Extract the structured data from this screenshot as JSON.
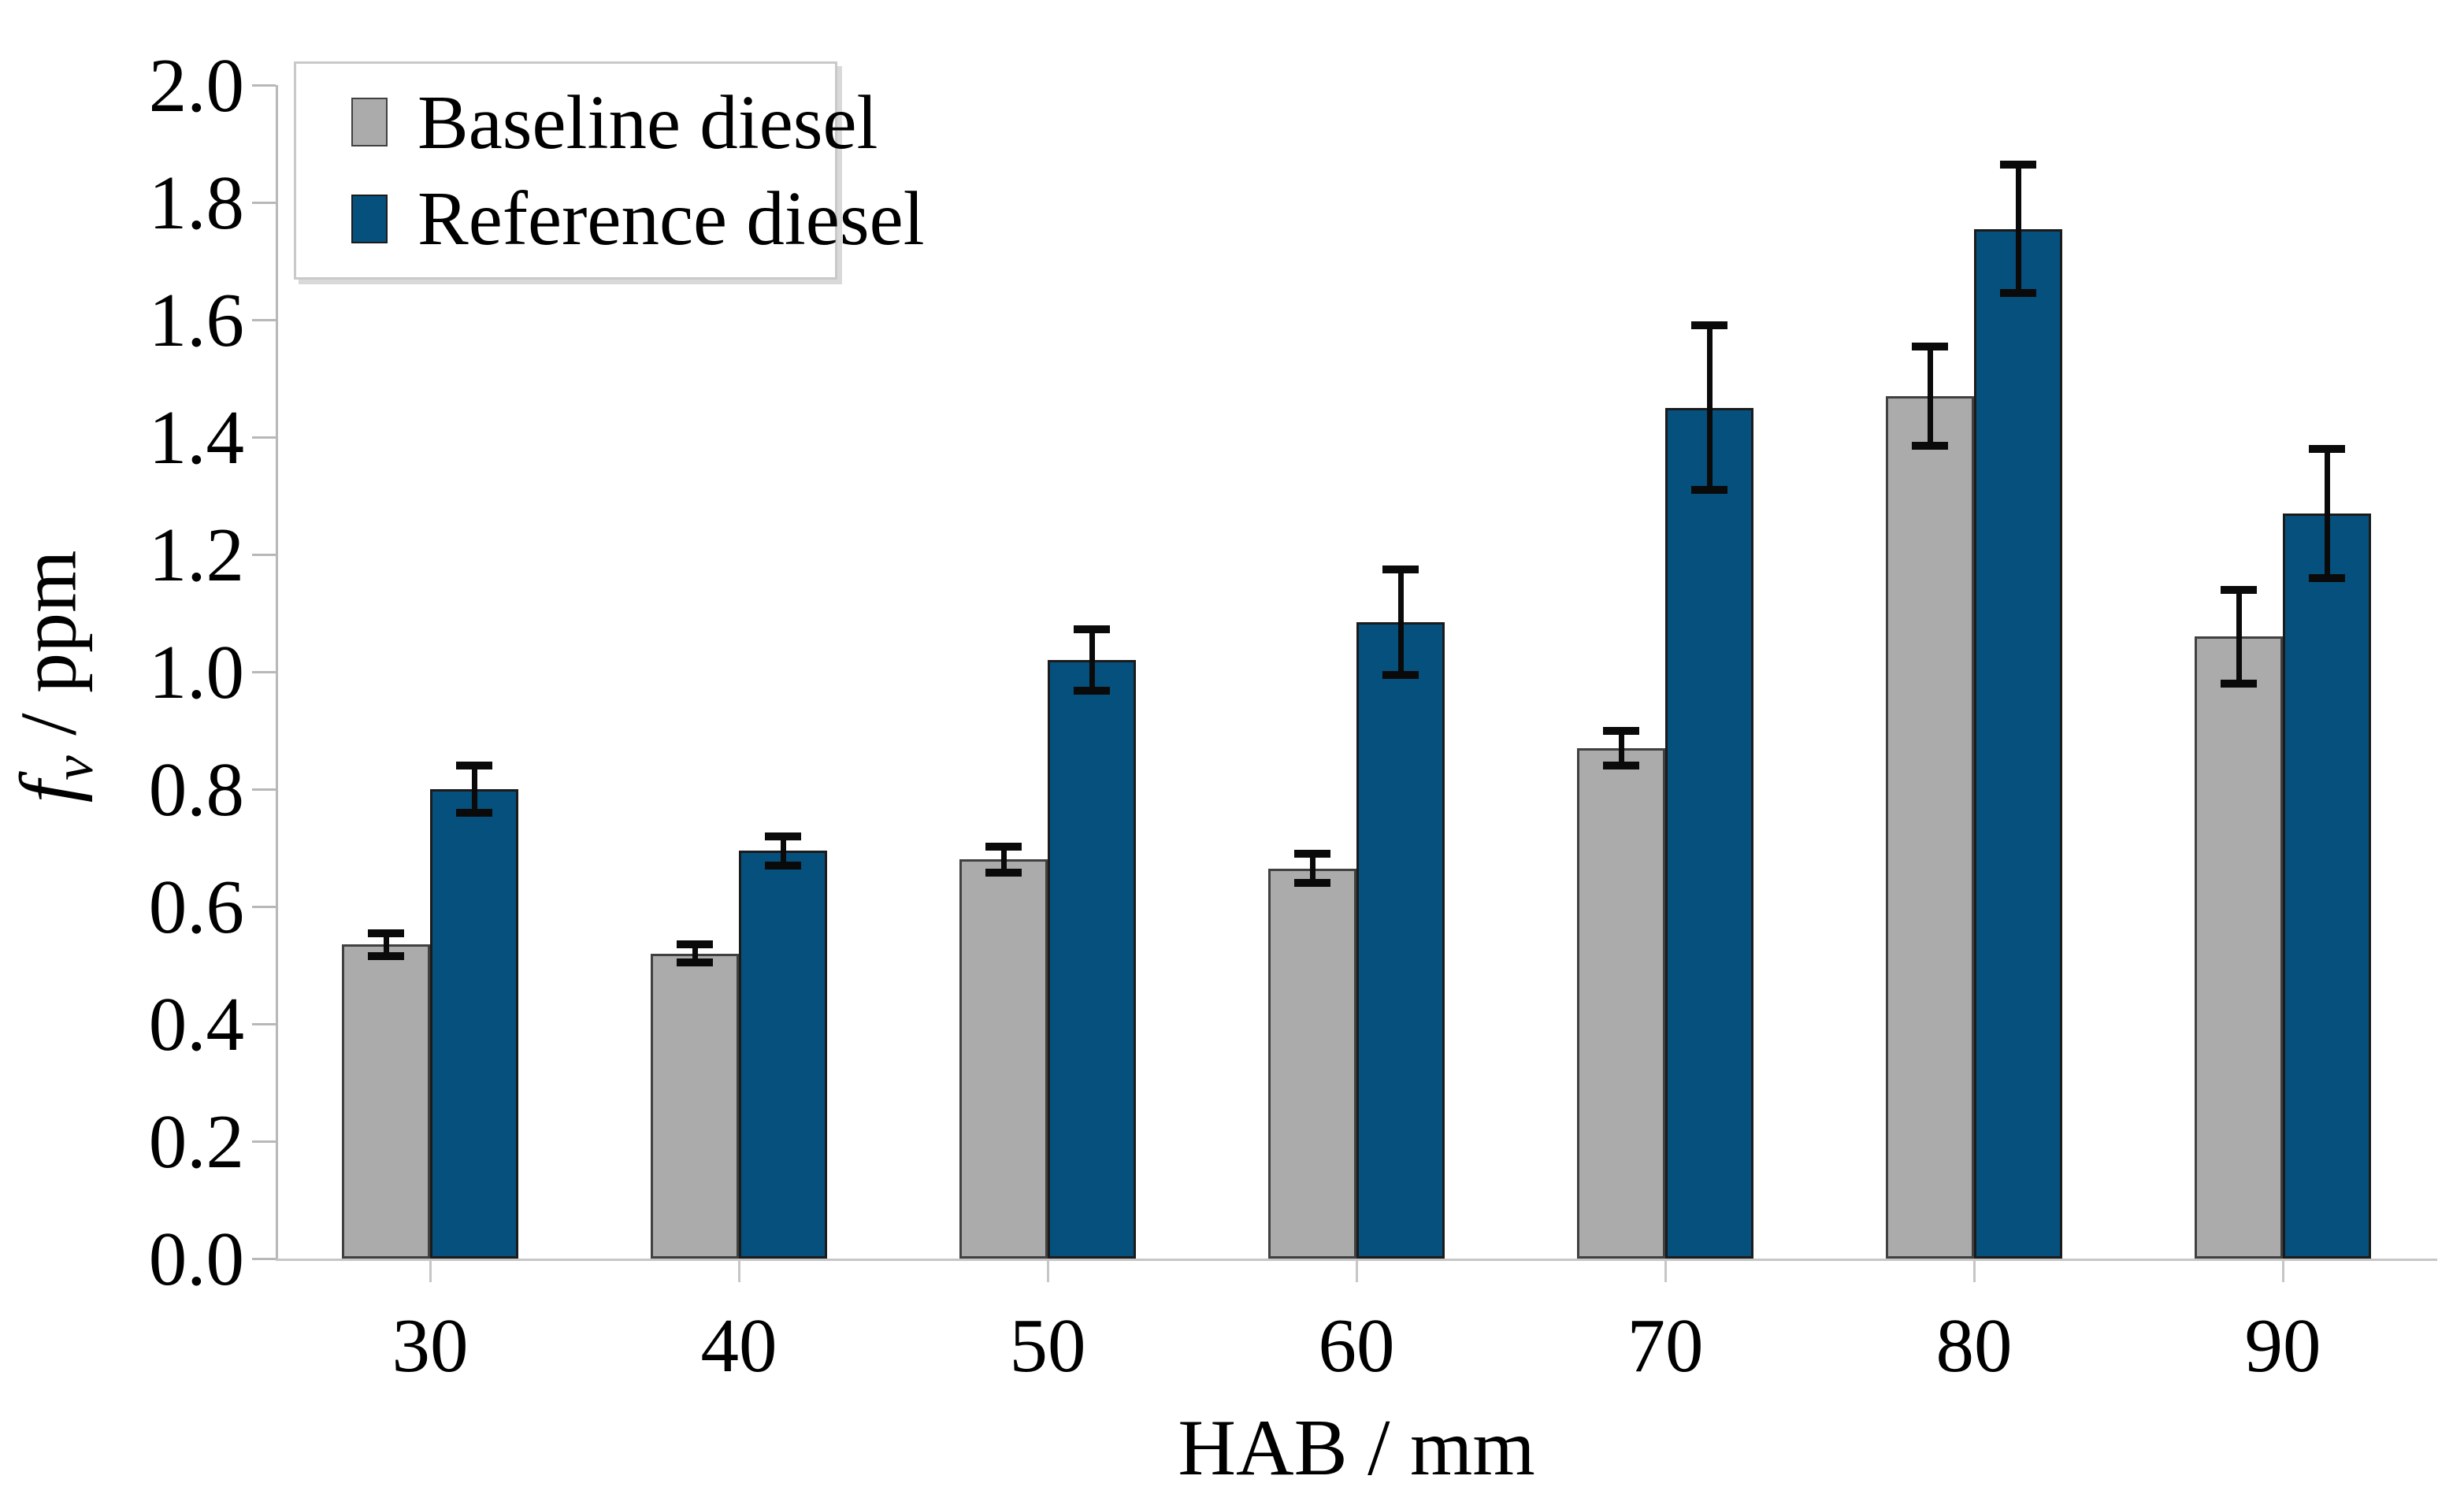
{
  "figure": {
    "background": "#ffffff",
    "axis_color": "#b8b8b8",
    "error_bar_color": "#0a0a0a"
  },
  "legend": {
    "position": "top-left",
    "items": [
      {
        "label": "Baseline diesel",
        "color": "#ababab",
        "border": "#404040"
      },
      {
        "label": "Reference diesel",
        "color": "#05507d",
        "border": "#1b1b1b"
      }
    ]
  },
  "chart_data": {
    "type": "bar",
    "title": "",
    "xlabel": "HAB / mm",
    "ylabel": "fv / ppm",
    "ylabel_parts": {
      "f": "f",
      "sub": "v",
      "rest": " / ppm"
    },
    "categories": [
      "30",
      "40",
      "50",
      "60",
      "70",
      "80",
      "90"
    ],
    "series": [
      {
        "name": "Baseline diesel",
        "color": "#ababab",
        "values": [
          0.535,
          0.52,
          0.68,
          0.665,
          0.87,
          1.47,
          1.06
        ],
        "errors": [
          0.02,
          0.015,
          0.022,
          0.025,
          0.03,
          0.085,
          0.08
        ]
      },
      {
        "name": "Reference diesel",
        "color": "#05507d",
        "values": [
          0.8,
          0.695,
          1.02,
          1.085,
          1.45,
          1.755,
          1.27
        ],
        "errors": [
          0.04,
          0.025,
          0.052,
          0.09,
          0.14,
          0.11,
          0.11
        ]
      }
    ],
    "ylim": [
      0.0,
      2.0
    ],
    "ytick_step": 0.2,
    "ytick_labels": [
      "0.0",
      "0.2",
      "0.4",
      "0.6",
      "0.8",
      "1.0",
      "1.2",
      "1.4",
      "1.6",
      "1.8",
      "2.0"
    ],
    "grid": false,
    "error_bars": true,
    "legend_position": "top-left"
  }
}
